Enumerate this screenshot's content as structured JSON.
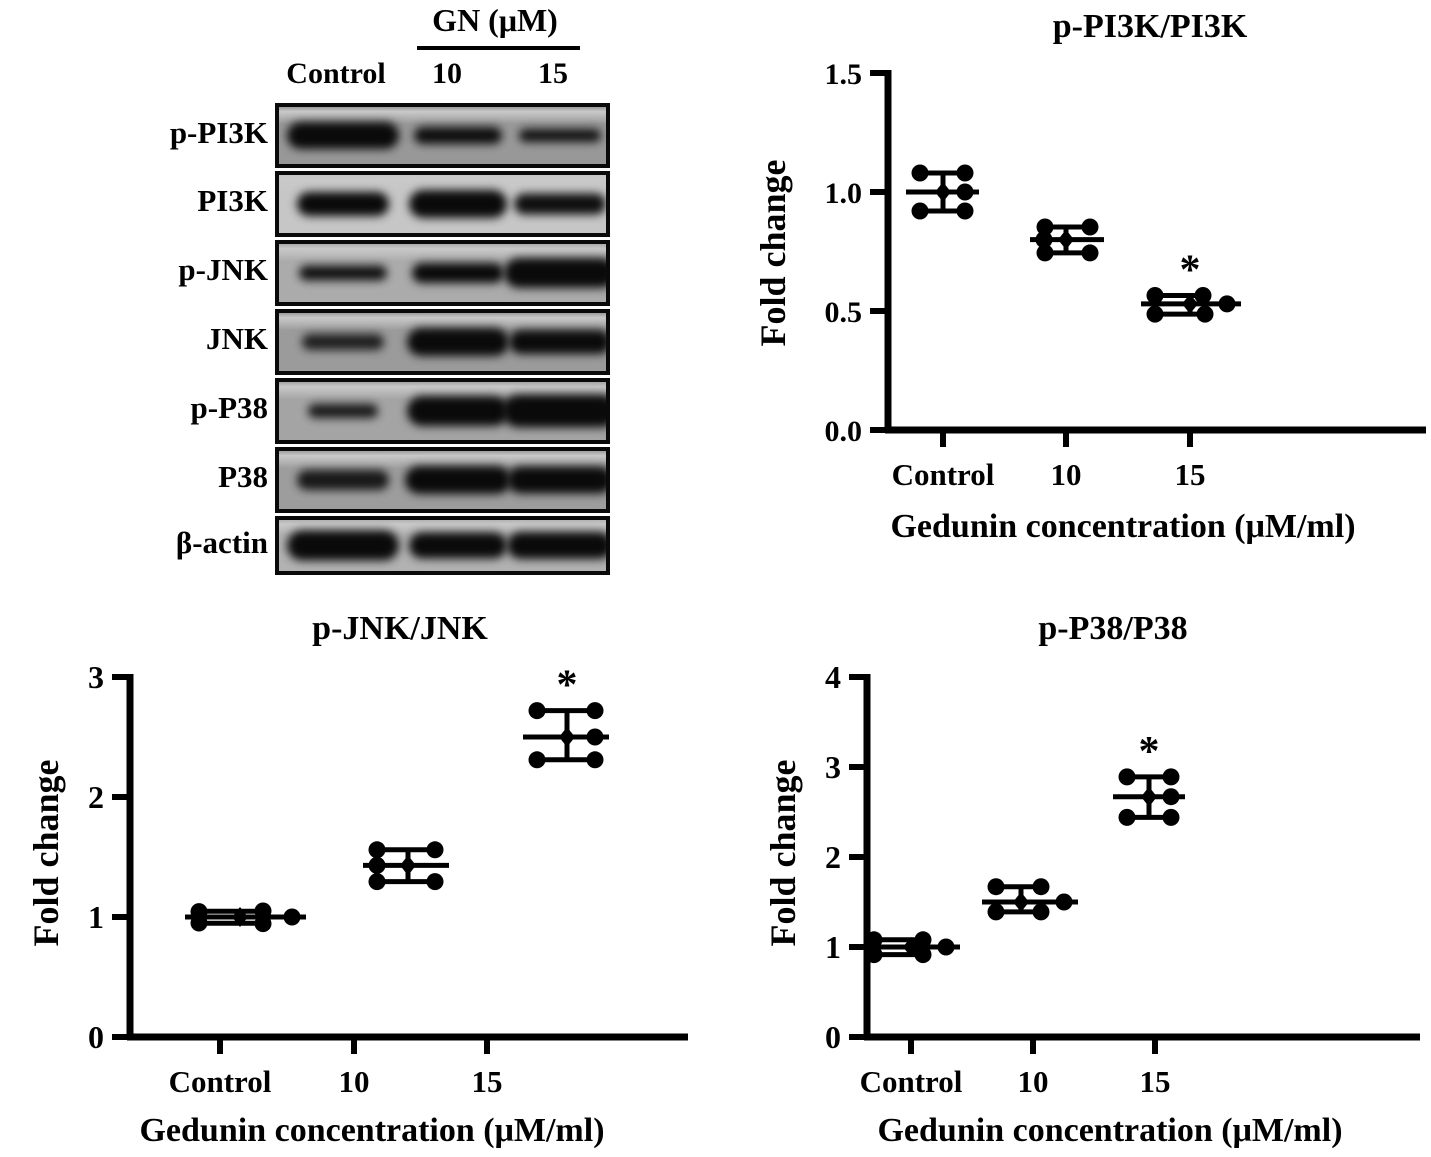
{
  "figure": {
    "background": "#ffffff",
    "ink": "#000000",
    "significance_marker": "*"
  },
  "blot": {
    "treatment_header": "GN (μM)",
    "lane_labels": [
      "Control",
      "10",
      "15"
    ],
    "rows": [
      {
        "label": "p-PI3K",
        "bg": "#989898",
        "bands": [
          [
            112,
            27,
            1
          ],
          [
            88,
            17,
            0.97
          ],
          [
            82,
            13,
            0.95
          ]
        ]
      },
      {
        "label": "PI3K",
        "bg": "#c6c6c6",
        "bands": [
          [
            92,
            24,
            1
          ],
          [
            98,
            28,
            1
          ],
          [
            92,
            21,
            0.97
          ]
        ]
      },
      {
        "label": "p-JNK",
        "bg": "#ababab",
        "bands": [
          [
            88,
            15,
            0.95
          ],
          [
            92,
            20,
            1
          ],
          [
            112,
            30,
            1
          ]
        ]
      },
      {
        "label": "JNK",
        "bg": "#9b9b9b",
        "bands": [
          [
            82,
            16,
            0.85
          ],
          [
            102,
            28,
            1
          ],
          [
            102,
            24,
            1
          ]
        ]
      },
      {
        "label": "p-P38",
        "bg": "#a4a4a4",
        "bands": [
          [
            70,
            14,
            0.9
          ],
          [
            102,
            30,
            1
          ],
          [
            116,
            33,
            1
          ]
        ]
      },
      {
        "label": "P38",
        "bg": "#9d9d9d",
        "bands": [
          [
            92,
            20,
            0.9
          ],
          [
            106,
            28,
            1
          ],
          [
            106,
            27,
            1
          ]
        ]
      },
      {
        "label": "β-actin",
        "bg": "#b2b2b2",
        "bands": [
          [
            112,
            30,
            1
          ],
          [
            98,
            26,
            1
          ],
          [
            106,
            27,
            1
          ]
        ]
      }
    ]
  },
  "chart_data": [
    {
      "type": "scatter",
      "title": "p-PI3K/PI3K",
      "xlabel": "Gedunin concentration (μM/ml)",
      "ylabel": "Fold change",
      "ylim": [
        0,
        1.5
      ],
      "yticks": [
        0,
        0.5,
        1.0,
        1.5
      ],
      "ytick_labels": [
        "0.0",
        "0.5",
        "1.0",
        "1.5"
      ],
      "categories": [
        "Control",
        "10",
        "15"
      ],
      "grid": false,
      "groups": [
        {
          "category": "Control",
          "mean": 1.0,
          "sd": 0.08,
          "significant": false,
          "points": [
            [
              -23,
              1.08
            ],
            [
              22,
              1.08
            ],
            [
              22,
              1.0
            ],
            [
              -23,
              0.92
            ],
            [
              22,
              0.92
            ]
          ]
        },
        {
          "category": "10",
          "mean": 0.8,
          "sd": 0.055,
          "significant": false,
          "points": [
            [
              -21,
              0.853
            ],
            [
              24,
              0.853
            ],
            [
              -22,
              0.8
            ],
            [
              -21,
              0.744
            ],
            [
              24,
              0.744
            ]
          ]
        },
        {
          "category": "15",
          "mean": 0.53,
          "sd": 0.04,
          "significant": true,
          "points": [
            [
              -35,
              0.565
            ],
            [
              13,
              0.565
            ],
            [
              37,
              0.53
            ],
            [
              -35,
              0.487
            ],
            [
              15,
              0.487
            ]
          ]
        }
      ]
    },
    {
      "type": "scatter",
      "title": "p-JNK/JNK",
      "xlabel": "Gedunin concentration (μM/ml)",
      "ylabel": "Fold change",
      "ylim": [
        0,
        3
      ],
      "yticks": [
        0,
        1,
        2,
        3
      ],
      "ytick_labels": [
        "0",
        "1",
        "2",
        "3"
      ],
      "categories": [
        "Control",
        "10",
        "15"
      ],
      "grid": false,
      "groups": [
        {
          "category": "Control",
          "mean": 1.0,
          "sd": 0.05,
          "significant": false,
          "points": [
            [
              -41,
              1.045
            ],
            [
              23,
              1.05
            ],
            [
              52,
              1.0
            ],
            [
              -41,
              0.95
            ],
            [
              23,
              0.945
            ]
          ]
        },
        {
          "category": "10",
          "mean": 1.43,
          "sd": 0.13,
          "significant": false,
          "points": [
            [
              -31,
              1.56
            ],
            [
              27,
              1.56
            ],
            [
              -31,
              1.43
            ],
            [
              -31,
              1.295
            ],
            [
              27,
              1.295
            ]
          ]
        },
        {
          "category": "15",
          "mean": 2.5,
          "sd": 0.2,
          "significant": true,
          "points": [
            [
              -30,
              2.72
            ],
            [
              28,
              2.72
            ],
            [
              28,
              2.5
            ],
            [
              -30,
              2.31
            ],
            [
              28,
              2.31
            ]
          ]
        }
      ]
    },
    {
      "type": "scatter",
      "title": "p-P38/P38",
      "xlabel": "Gedunin concentration (μM/ml)",
      "ylabel": "Fold change",
      "ylim": [
        0,
        4
      ],
      "yticks": [
        0,
        1,
        2,
        3,
        4
      ],
      "ytick_labels": [
        "0",
        "1",
        "2",
        "3",
        "4"
      ],
      "categories": [
        "Control",
        "10",
        "15"
      ],
      "grid": false,
      "groups": [
        {
          "category": "Control",
          "mean": 1.0,
          "sd": 0.08,
          "significant": false,
          "points": [
            [
              -37,
              1.08
            ],
            [
              12,
              1.08
            ],
            [
              35,
              1.0
            ],
            [
              -37,
              0.915
            ],
            [
              12,
              0.915
            ]
          ]
        },
        {
          "category": "10",
          "mean": 1.5,
          "sd": 0.14,
          "significant": false,
          "points": [
            [
              -25,
              1.67
            ],
            [
              20,
              1.67
            ],
            [
              43,
              1.5
            ],
            [
              -25,
              1.39
            ],
            [
              20,
              1.39
            ]
          ]
        },
        {
          "category": "15",
          "mean": 2.67,
          "sd": 0.22,
          "significant": true,
          "points": [
            [
              -22,
              2.89
            ],
            [
              22,
              2.89
            ],
            [
              22,
              2.67
            ],
            [
              -22,
              2.44
            ],
            [
              22,
              2.44
            ]
          ]
        }
      ]
    }
  ]
}
